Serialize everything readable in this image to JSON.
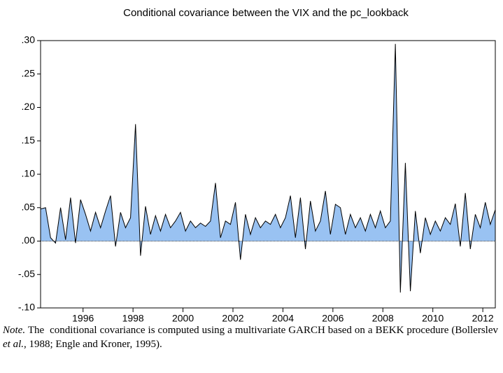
{
  "chart_data": {
    "type": "area",
    "title": "Conditional covariance between the VIX and the pc_lookback",
    "x": [
      1994.3,
      1994.5,
      1994.7,
      1994.9,
      1995.1,
      1995.3,
      1995.5,
      1995.7,
      1995.9,
      1996.1,
      1996.3,
      1996.5,
      1996.7,
      1996.9,
      1997.1,
      1997.3,
      1997.5,
      1997.7,
      1997.9,
      1998.1,
      1998.3,
      1998.5,
      1998.7,
      1998.9,
      1999.1,
      1999.3,
      1999.5,
      1999.7,
      1999.9,
      2000.1,
      2000.3,
      2000.5,
      2000.7,
      2000.9,
      2001.1,
      2001.3,
      2001.5,
      2001.7,
      2001.9,
      2002.1,
      2002.3,
      2002.5,
      2002.7,
      2002.9,
      2003.1,
      2003.3,
      2003.5,
      2003.7,
      2003.9,
      2004.1,
      2004.3,
      2004.5,
      2004.7,
      2004.9,
      2005.1,
      2005.3,
      2005.5,
      2005.7,
      2005.9,
      2006.1,
      2006.3,
      2006.5,
      2006.7,
      2006.9,
      2007.1,
      2007.3,
      2007.5,
      2007.7,
      2007.9,
      2008.1,
      2008.3,
      2008.5,
      2008.7,
      2008.9,
      2009.1,
      2009.3,
      2009.5,
      2009.7,
      2009.9,
      2010.1,
      2010.3,
      2010.5,
      2010.7,
      2010.9,
      2011.1,
      2011.3,
      2011.5,
      2011.7,
      2011.9,
      2012.1,
      2012.3,
      2012.5
    ],
    "values": [
      0.048,
      0.05,
      0.005,
      -0.003,
      0.05,
      0.002,
      0.065,
      -0.003,
      0.062,
      0.04,
      0.015,
      0.043,
      0.02,
      0.045,
      0.068,
      -0.008,
      0.043,
      0.02,
      0.035,
      0.175,
      -0.022,
      0.052,
      0.01,
      0.038,
      0.015,
      0.04,
      0.02,
      0.03,
      0.043,
      0.015,
      0.03,
      0.02,
      0.027,
      0.022,
      0.03,
      0.087,
      0.005,
      0.03,
      0.025,
      0.058,
      -0.028,
      0.04,
      0.01,
      0.035,
      0.02,
      0.03,
      0.025,
      0.04,
      0.02,
      0.035,
      0.068,
      0.005,
      0.065,
      -0.012,
      0.06,
      0.015,
      0.03,
      0.075,
      0.01,
      0.055,
      0.05,
      0.01,
      0.04,
      0.02,
      0.035,
      0.015,
      0.04,
      0.02,
      0.045,
      0.02,
      0.03,
      0.295,
      -0.077,
      0.117,
      -0.075,
      0.045,
      -0.018,
      0.035,
      0.01,
      0.03,
      0.015,
      0.035,
      0.025,
      0.056,
      -0.008,
      0.072,
      -0.012,
      0.04,
      0.02,
      0.058,
      0.025,
      0.047
    ],
    "color": "#99c2f2",
    "line_color": "#000000",
    "xlim": [
      1994.3,
      2012.5
    ],
    "xticks": [
      1996,
      1998,
      2000,
      2002,
      2004,
      2006,
      2008,
      2010,
      2012
    ],
    "ylim": [
      -0.1,
      0.3
    ],
    "yticks": [
      {
        "value": -0.1,
        "label": "-.10"
      },
      {
        "value": -0.05,
        "label": "-.05"
      },
      {
        "value": 0,
        "label": ".00"
      },
      {
        "value": 0.05,
        "label": ".05"
      },
      {
        "value": 0.1,
        "label": ".10"
      },
      {
        "value": 0.15,
        "label": ".15"
      },
      {
        "value": 0.2,
        "label": ".20"
      },
      {
        "value": 0.25,
        "label": ".25"
      },
      {
        "value": 0.3,
        "label": ".30"
      }
    ]
  },
  "note": {
    "label": "Note.",
    "text_1": " The  conditional covariance is computed using a multivariate GARCH based on a BEKK procedure (Bollerslev ",
    "emphasis": "et al.",
    "text_2": ", 1988; Engle and Kroner, 1995)."
  }
}
